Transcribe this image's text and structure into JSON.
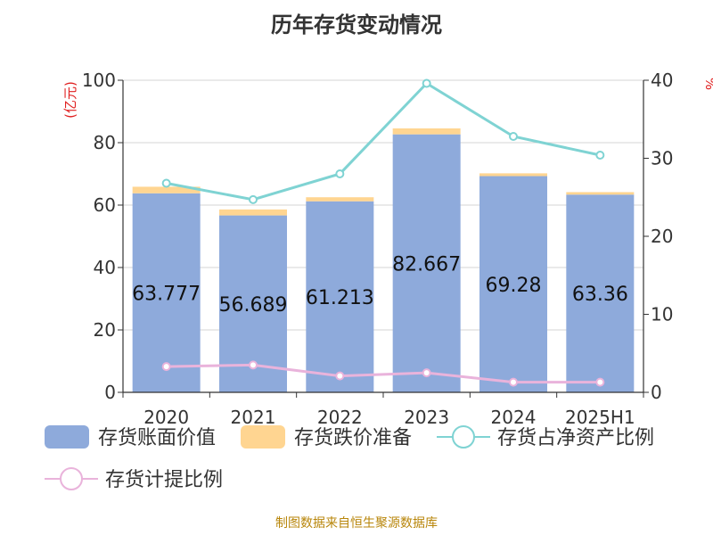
{
  "title": "历年存货变动情况",
  "source": "制图数据来自恒生聚源数据库",
  "chart_data": {
    "type": "bar",
    "title": "历年存货变动情况",
    "categories": [
      "2020",
      "2021",
      "2022",
      "2023",
      "2024",
      "2025H1"
    ],
    "y_left": {
      "label": "(亿元)",
      "ylim": [
        0,
        100
      ],
      "ticks": [
        0,
        20,
        40,
        60,
        80,
        100
      ]
    },
    "y_right": {
      "label": "%",
      "ylim": [
        0,
        40
      ],
      "ticks": [
        0,
        10,
        20,
        30,
        40
      ]
    },
    "grid": true,
    "legend_position": "bottom",
    "series": [
      {
        "name": "存货账面价值",
        "type": "bar",
        "stack": "inv",
        "axis": "left",
        "color": "#8eaadb",
        "values": [
          63.777,
          56.689,
          61.213,
          82.667,
          69.28,
          63.36
        ],
        "labels": [
          "63.777",
          "56.689",
          "61.213",
          "82.667",
          "69.28",
          "63.36"
        ]
      },
      {
        "name": "存货跌价准备",
        "type": "bar",
        "stack": "inv",
        "axis": "left",
        "color": "#ffd591",
        "values": [
          2.1,
          1.9,
          1.3,
          1.9,
          0.9,
          0.8
        ]
      },
      {
        "name": "存货占净资产比例",
        "type": "line",
        "axis": "right",
        "color": "#7fd3d3",
        "values": [
          26.8,
          24.7,
          28.0,
          39.6,
          32.8,
          30.4
        ]
      },
      {
        "name": "存货计提比例",
        "type": "line",
        "axis": "right",
        "color": "#e9b3db",
        "values": [
          3.3,
          3.5,
          2.1,
          2.5,
          1.3,
          1.3
        ]
      }
    ]
  }
}
